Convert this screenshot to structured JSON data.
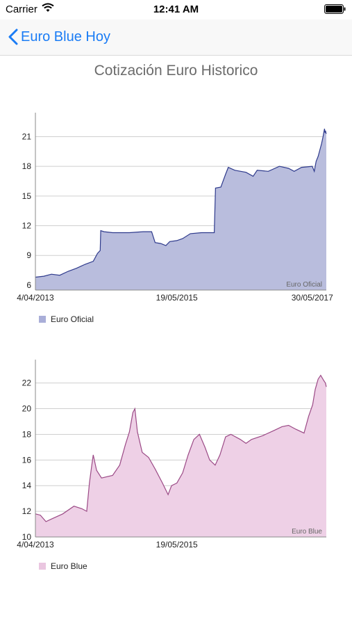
{
  "status": {
    "carrier": "Carrier",
    "time": "12:41 AM"
  },
  "nav": {
    "back_label": "Euro Blue Hoy"
  },
  "page": {
    "title": "Cotización Euro Historico"
  },
  "colors": {
    "accent": "#1a7cf5",
    "oficial_fill": "#b9bddd",
    "oficial_line": "#2e3a8c",
    "blue_fill": "#eed0e6",
    "blue_line": "#9b4a86"
  },
  "chart_data": [
    {
      "type": "area",
      "title": "",
      "series": [
        {
          "name": "Euro Oficial"
        }
      ],
      "description": "Euro Oficial",
      "legend": "bottom-left",
      "grid": true,
      "xlim": [
        "2013-04-04",
        "2017-08-15"
      ],
      "ylim": [
        5.5,
        23
      ],
      "yticks": [
        6,
        9,
        12,
        15,
        18,
        21
      ],
      "xtick_labels": [
        "4/04/2013",
        "19/05/2015",
        "30/05/2017"
      ],
      "xtick_dates": [
        "2013-04-04",
        "2015-05-19",
        "2017-05-30"
      ],
      "points": [
        [
          "2013-04-04",
          6.8
        ],
        [
          "2013-05-20",
          6.9
        ],
        [
          "2013-07-01",
          7.1
        ],
        [
          "2013-08-15",
          7.0
        ],
        [
          "2013-10-01",
          7.4
        ],
        [
          "2013-11-15",
          7.7
        ],
        [
          "2014-01-01",
          8.1
        ],
        [
          "2014-02-15",
          8.4
        ],
        [
          "2014-03-10",
          9.2
        ],
        [
          "2014-03-25",
          9.5
        ],
        [
          "2014-03-28",
          11.5
        ],
        [
          "2014-04-15",
          11.4
        ],
        [
          "2014-06-01",
          11.3
        ],
        [
          "2014-09-01",
          11.3
        ],
        [
          "2014-11-15",
          11.4
        ],
        [
          "2015-01-01",
          11.4
        ],
        [
          "2015-01-20",
          10.3
        ],
        [
          "2015-02-20",
          10.2
        ],
        [
          "2015-03-20",
          10.0
        ],
        [
          "2015-04-10",
          10.4
        ],
        [
          "2015-05-19",
          10.5
        ],
        [
          "2015-06-20",
          10.7
        ],
        [
          "2015-08-01",
          11.2
        ],
        [
          "2015-10-01",
          11.3
        ],
        [
          "2015-12-10",
          11.3
        ],
        [
          "2015-12-17",
          15.8
        ],
        [
          "2016-01-15",
          15.9
        ],
        [
          "2016-02-10",
          17.2
        ],
        [
          "2016-02-25",
          17.9
        ],
        [
          "2016-04-01",
          17.6
        ],
        [
          "2016-06-01",
          17.4
        ],
        [
          "2016-07-10",
          17.0
        ],
        [
          "2016-08-01",
          17.6
        ],
        [
          "2016-10-01",
          17.5
        ],
        [
          "2016-12-01",
          18.0
        ],
        [
          "2017-01-20",
          17.8
        ],
        [
          "2017-02-20",
          17.5
        ],
        [
          "2017-04-01",
          17.9
        ],
        [
          "2017-05-30",
          18.0
        ],
        [
          "2017-06-10",
          17.5
        ],
        [
          "2017-06-20",
          18.5
        ],
        [
          "2017-07-01",
          19.0
        ],
        [
          "2017-07-10",
          19.6
        ],
        [
          "2017-07-20",
          20.3
        ],
        [
          "2017-07-28",
          21.0
        ],
        [
          "2017-08-05",
          21.8
        ],
        [
          "2017-08-08",
          21.4
        ],
        [
          "2017-08-11",
          21.6
        ],
        [
          "2017-08-13",
          21.3
        ],
        [
          "2017-08-15",
          21.4
        ]
      ]
    },
    {
      "type": "area",
      "title": "",
      "series": [
        {
          "name": "Euro Blue"
        }
      ],
      "description": "Euro Blue",
      "legend": "bottom-left",
      "grid": true,
      "xlim": [
        "2013-04-04",
        "2017-08-15"
      ],
      "ylim": [
        10,
        23.5
      ],
      "yticks": [
        10,
        12,
        14,
        16,
        18,
        20,
        22
      ],
      "xtick_labels": [
        "4/04/2013",
        "19/05/2015"
      ],
      "xtick_dates": [
        "2013-04-04",
        "2015-05-19"
      ],
      "points": [
        [
          "2013-04-04",
          11.8
        ],
        [
          "2013-05-01",
          11.7
        ],
        [
          "2013-06-01",
          11.2
        ],
        [
          "2013-07-01",
          11.4
        ],
        [
          "2013-09-01",
          11.8
        ],
        [
          "2013-11-01",
          12.4
        ],
        [
          "2013-12-15",
          12.2
        ],
        [
          "2014-01-10",
          12.0
        ],
        [
          "2014-01-25",
          14.2
        ],
        [
          "2014-02-05",
          15.4
        ],
        [
          "2014-02-15",
          16.4
        ],
        [
          "2014-03-05",
          15.2
        ],
        [
          "2014-04-01",
          14.6
        ],
        [
          "2014-06-01",
          14.8
        ],
        [
          "2014-07-10",
          15.6
        ],
        [
          "2014-08-10",
          17.2
        ],
        [
          "2014-09-01",
          18.2
        ],
        [
          "2014-09-20",
          19.7
        ],
        [
          "2014-10-01",
          20.0
        ],
        [
          "2014-10-15",
          18.2
        ],
        [
          "2014-11-10",
          16.6
        ],
        [
          "2014-12-15",
          16.2
        ],
        [
          "2015-01-20",
          15.3
        ],
        [
          "2015-03-01",
          14.2
        ],
        [
          "2015-04-01",
          13.3
        ],
        [
          "2015-04-20",
          14.0
        ],
        [
          "2015-05-19",
          14.2
        ],
        [
          "2015-06-20",
          15.0
        ],
        [
          "2015-07-20",
          16.4
        ],
        [
          "2015-08-20",
          17.6
        ],
        [
          "2015-09-20",
          18.0
        ],
        [
          "2015-10-20",
          17.0
        ],
        [
          "2015-11-15",
          16.0
        ],
        [
          "2015-12-15",
          15.6
        ],
        [
          "2016-01-10",
          16.4
        ],
        [
          "2016-02-10",
          17.8
        ],
        [
          "2016-03-10",
          18.0
        ],
        [
          "2016-05-01",
          17.6
        ],
        [
          "2016-06-01",
          17.3
        ],
        [
          "2016-07-01",
          17.6
        ],
        [
          "2016-09-01",
          17.9
        ],
        [
          "2016-11-01",
          18.3
        ],
        [
          "2016-12-15",
          18.6
        ],
        [
          "2017-01-20",
          18.7
        ],
        [
          "2017-03-01",
          18.4
        ],
        [
          "2017-04-15",
          18.1
        ],
        [
          "2017-05-10",
          19.4
        ],
        [
          "2017-06-01",
          20.3
        ],
        [
          "2017-06-15",
          21.5
        ],
        [
          "2017-07-01",
          22.3
        ],
        [
          "2017-07-15",
          22.6
        ],
        [
          "2017-08-01",
          22.2
        ],
        [
          "2017-08-10",
          22.0
        ],
        [
          "2017-08-15",
          21.7
        ]
      ]
    }
  ]
}
